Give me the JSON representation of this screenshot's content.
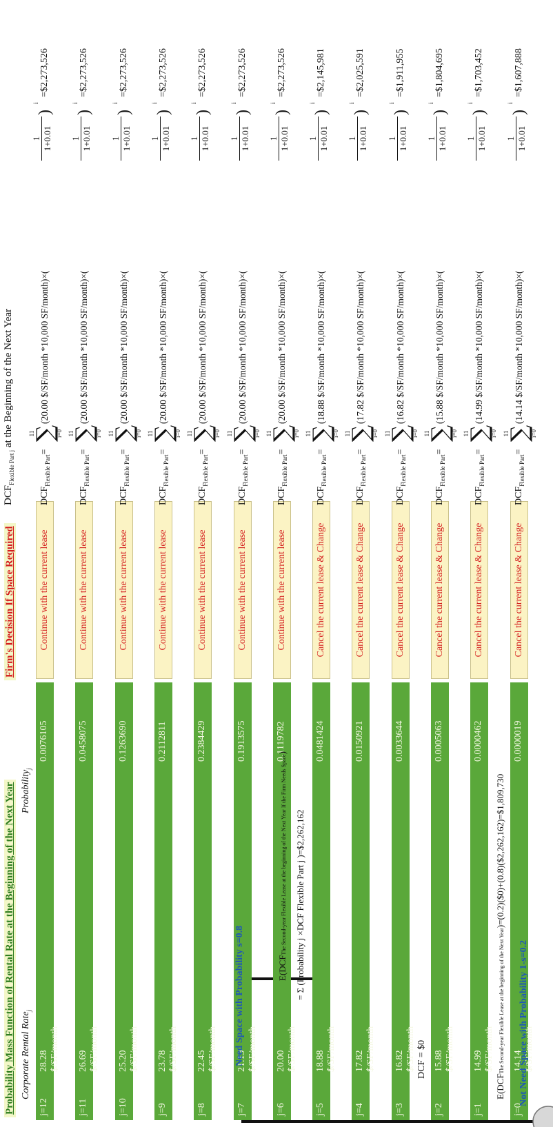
{
  "table": {
    "title": "Probability Mass Function of Rental Rate at the Beginning of the Next Year",
    "decision_title": "Firm's Decision If Space Required",
    "rate_header": "Corporate Rental Rate",
    "rate_header_sub": "j",
    "prob_header": "Probability",
    "prob_header_sub": "j",
    "rows": [
      {
        "j": "j=12",
        "rate": "28.28 $/SF/month",
        "prob": "0.0076105",
        "decision": "Continue with the current lease"
      },
      {
        "j": "j=11",
        "rate": "26.69 $/SF/month",
        "prob": "0.0458075",
        "decision": "Continue with the current lease"
      },
      {
        "j": "j=10",
        "rate": "25.20 $/SF/month",
        "prob": "0.1263690",
        "decision": "Continue with the current lease"
      },
      {
        "j": "j=9",
        "rate": "23.78 $/SF/month",
        "prob": "0.2112811",
        "decision": "Continue with the current lease"
      },
      {
        "j": "j=8",
        "rate": "22.45 $/SF/month",
        "prob": "0.2384429",
        "decision": "Continue with the current lease"
      },
      {
        "j": "j=7",
        "rate": "21.19 $/SF/month",
        "prob": "0.1913575",
        "decision": "Continue with the current lease"
      },
      {
        "j": "j=6",
        "rate": "20.00 $/SF/month",
        "prob": "0.1119782",
        "decision": "Continue with the current lease"
      },
      {
        "j": "j=5",
        "rate": "18.88 $/SF/month",
        "prob": "0.0481424",
        "decision": "Cancel the current lease & Change"
      },
      {
        "j": "j=4",
        "rate": "17.82 $/SF/month",
        "prob": "0.0150921",
        "decision": "Cancel the current lease & Change"
      },
      {
        "j": "j=3",
        "rate": "16.82 $/SF/month",
        "prob": "0.0033644",
        "decision": "Cancel the current lease & Change"
      },
      {
        "j": "j=2",
        "rate": "15.88 $/SF/month",
        "prob": "0.0005063",
        "decision": "Cancel the current lease & Change"
      },
      {
        "j": "j=1",
        "rate": "14.99 $/SF/month",
        "prob": "0.0000462",
        "decision": "Cancel the current lease & Change"
      },
      {
        "j": "j=0",
        "rate": "14.14 $/SF/month",
        "prob": "0.0000019",
        "decision": "Cancel the current lease & Change"
      }
    ]
  },
  "dcf": {
    "header_prefix": "DCF",
    "header_sub": "Flexible Part j",
    "header_suffix": "at the Beginning of the Next Year",
    "lhs": "DCF",
    "lhs_sub": "Flexible Part",
    "lhs_eq": "=",
    "sum_upper": "11",
    "sum_lower": "i=0",
    "frac_num": "1",
    "frac_den": "1+0.01",
    "exponent": "i",
    "rows": [
      {
        "body": "(20.00 $/SF/month *10,000 SF/month)×(",
        "result": "=$2,273,526"
      },
      {
        "body": "(20.00 $/SF/month *10,000 SF/month)×(",
        "result": "=$2,273,526"
      },
      {
        "body": "(20.00 $/SF/month *10,000 SF/month)×(",
        "result": "=$2,273,526"
      },
      {
        "body": "(20.00 $/SF/month *10,000 SF/month)×(",
        "result": "=$2,273,526"
      },
      {
        "body": "(20.00 $/SF/month *10,000 SF/month)×(",
        "result": "=$2,273,526"
      },
      {
        "body": "(20.00 $/SF/month *10,000 SF/month)×(",
        "result": "=$2,273,526"
      },
      {
        "body": "(20.00 $/SF/month *10,000 SF/month)×(",
        "result": "=$2,273,526"
      },
      {
        "body": "(18.88 $/SF/month *10,000 SF/month)×(",
        "result": "=$2,145,981"
      },
      {
        "body": "(17.82 $/SF/month *10,000 SF/month)×(",
        "result": "=$2,025,591"
      },
      {
        "body": "(16.82 $/SF/month *10,000 SF/month)×(",
        "result": "=$1,911,955"
      },
      {
        "body": "(15.88 $/SF/month *10,000 SF/month)×(",
        "result": "=$1,804,695"
      },
      {
        "body": "(14.99 $/SF/month *10,000 SF/month)×(",
        "result": "=$1,703,452"
      },
      {
        "body": "(14.14 $/SF/month *10,000 SF/month)×(",
        "result": "=$1,607,888"
      }
    ]
  },
  "tree": {
    "need_space": "Need Space with Probability s=0.8",
    "not_need_space": "Not Need Space with Probability 1-s=0.2",
    "dcf_zero": "DCF = $0",
    "exp_need_line1_prefix": "E(DCF",
    "exp_need_line1_sub": "The Second-year Flexible Lease at the beginning of the Next Year If the Firm Needs Space",
    "exp_need_line1_suffix": ")",
    "exp_need_line2": "= Σ (Probability j ×DCF Flexible Part j )=$2,262,162",
    "exp_need_sum_upper": "12",
    "exp_need_sum_lower": "j=0",
    "exp_total_prefix": "E(DCF",
    "exp_total_sub": "The Second-year Flexible Lease at the beginning of the Next Year",
    "exp_total_suffix": ")=(0.2)($0)+(0.8)($2,262,162)=$1,809,730"
  }
}
